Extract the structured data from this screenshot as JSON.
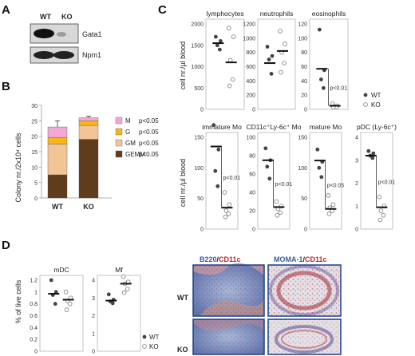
{
  "panels": {
    "A": "A",
    "B": "B",
    "C": "C",
    "D": "D"
  },
  "westernBlot": {
    "lanes": [
      "WT",
      "KO"
    ],
    "bands": [
      "Gata1",
      "Npm1"
    ]
  },
  "colonyChart": {
    "ylabel": "Colony nr./2x10⁴ cells",
    "yticks": [
      "0",
      "5",
      "10",
      "15",
      "20",
      "25",
      "30"
    ],
    "categories": [
      "WT",
      "KO"
    ],
    "legend": [
      {
        "label": "M",
        "pval": "p<0.05",
        "color": "#f2a7d6"
      },
      {
        "label": "G",
        "pval": "p<0.05",
        "color": "#f7b51c"
      },
      {
        "label": "GM",
        "pval": "p<0.05",
        "color": "#f2c597"
      },
      {
        "label": "GEMM",
        "pval": "p<0.05",
        "color": "#5e3c1c"
      }
    ]
  },
  "bloodCounts": {
    "ylabel": "cell nr./µl blood",
    "legend": {
      "wt": "WT",
      "ko": "KO"
    },
    "row1": [
      {
        "title": "lymphocytes",
        "yticks": [
          "0",
          "500",
          "1000",
          "1500",
          "2000"
        ],
        "pval": ""
      },
      {
        "title": "neutrophils",
        "yticks": [
          "0",
          "200",
          "400",
          "600",
          "800",
          "1000",
          "1200"
        ],
        "pval": ""
      },
      {
        "title": "eosinophils",
        "yticks": [
          "0",
          "20",
          "40",
          "60",
          "80",
          "100",
          "120"
        ],
        "pval": "p<0.01"
      }
    ],
    "row2": [
      {
        "title": "immature Mo",
        "yticks": [
          "0",
          "50",
          "100",
          "150"
        ],
        "pval": "p<0.01"
      },
      {
        "title": "CD11c⁺Ly-6c⁺ Mo",
        "yticks": [
          "0",
          "20",
          "40",
          "60",
          "80",
          "100"
        ],
        "pval": "p<0.01"
      },
      {
        "title": "mature Mo",
        "yticks": [
          "0",
          "50",
          "100",
          "150"
        ],
        "pval": "p<0.05"
      },
      {
        "title": "pDC (Ly-6c⁺)",
        "yticks": [
          "0",
          "1",
          "2",
          "3",
          "4"
        ],
        "pval": "p<0.01"
      }
    ]
  },
  "liveCells": {
    "ylabel": "% of live cells",
    "legend": {
      "wt": "WT",
      "ko": "KO"
    },
    "panels": [
      {
        "title": "mDC",
        "yticks": [
          "0",
          "0.2",
          "0.4",
          "0.6",
          "0.8",
          "1",
          "1.2"
        ]
      },
      {
        "title": "Mf",
        "yticks": [
          "0",
          "1",
          "2",
          "3",
          "4"
        ]
      }
    ]
  },
  "histology": {
    "col1": {
      "a": "B220",
      "sep": "/",
      "b": "CD11c"
    },
    "col2": {
      "a": "MOMA-1",
      "sep": "/",
      "b": "CD11c"
    },
    "rows": [
      "WT",
      "KO"
    ],
    "colors": {
      "blue": "#3c5a9c",
      "red": "#b8232a"
    }
  },
  "chart_data": [
    {
      "type": "bar",
      "title": "",
      "categories": [
        "WT",
        "KO"
      ],
      "stacked": true,
      "ylabel": "Colony nr./2x10⁴ cells",
      "ylim": [
        0,
        30
      ],
      "series": [
        {
          "name": "GEMM",
          "values": [
            7.5,
            19
          ]
        },
        {
          "name": "GM",
          "values": [
            10,
            4.5
          ]
        },
        {
          "name": "G",
          "values": [
            2,
            1.5
          ]
        },
        {
          "name": "M",
          "values": [
            3.5,
            1
          ]
        }
      ],
      "error_tops": [
        25,
        26.5
      ]
    },
    {
      "type": "scatter",
      "title": "lymphocytes",
      "ylim": [
        0,
        2000
      ],
      "wt": [
        1700,
        1600,
        1500,
        1400
      ],
      "ko": [
        1900,
        1700,
        1150,
        700,
        550
      ],
      "means": [
        1550,
        1100
      ]
    },
    {
      "type": "scatter",
      "title": "neutrophils",
      "ylim": [
        0,
        1200
      ],
      "wt": [
        880,
        750,
        700,
        500
      ],
      "ko": [
        1100,
        920,
        800,
        650,
        520
      ],
      "means": [
        650,
        820
      ]
    },
    {
      "type": "scatter",
      "title": "eosinophils",
      "ylim": [
        0,
        120
      ],
      "wt": [
        112,
        55,
        42,
        30
      ],
      "ko": [
        8,
        5,
        4,
        3,
        3
      ],
      "means": [
        57,
        5
      ]
    },
    {
      "type": "scatter",
      "title": "immature Mo",
      "ylim": [
        0,
        150
      ],
      "wt": [
        170,
        130,
        95,
        70
      ],
      "ko": [
        60,
        40,
        30,
        25,
        20
      ],
      "means": [
        135,
        35
      ]
    },
    {
      "type": "scatter",
      "title": "CD11c⁺Ly-6c⁺ Mo",
      "ylim": [
        0,
        100
      ],
      "wt": [
        88,
        75,
        68,
        55
      ],
      "ko": [
        30,
        25,
        22,
        18,
        15
      ],
      "means": [
        75,
        24
      ]
    },
    {
      "type": "scatter",
      "title": "mature Mo",
      "ylim": [
        0,
        150
      ],
      "wt": [
        130,
        110,
        100,
        85
      ],
      "ko": [
        55,
        40,
        35,
        30,
        25
      ],
      "means": [
        112,
        33
      ]
    },
    {
      "type": "scatter",
      "title": "pDC (Ly-6c⁺)",
      "ylim": [
        0,
        4
      ],
      "wt": [
        3.4,
        3.3,
        3.2,
        3.1
      ],
      "ko": [
        1.4,
        1.0,
        0.8,
        0.6,
        0.4
      ],
      "means": [
        3.2,
        0.95
      ]
    },
    {
      "type": "scatter",
      "title": "mDC",
      "ylim": [
        0,
        1.2
      ],
      "wt": [
        1.2,
        1.0,
        0.95,
        0.8
      ],
      "ko": [
        1.0,
        0.9,
        0.85,
        0.8,
        0.7
      ],
      "means": [
        0.97,
        0.87
      ]
    },
    {
      "type": "scatter",
      "title": "Mf",
      "ylim": [
        0,
        4
      ],
      "wt": [
        3.2,
        2.9,
        2.8,
        2.7
      ],
      "ko": [
        4.2,
        3.9,
        3.8,
        3.5,
        3.3
      ],
      "means": [
        2.85,
        3.8
      ]
    }
  ]
}
